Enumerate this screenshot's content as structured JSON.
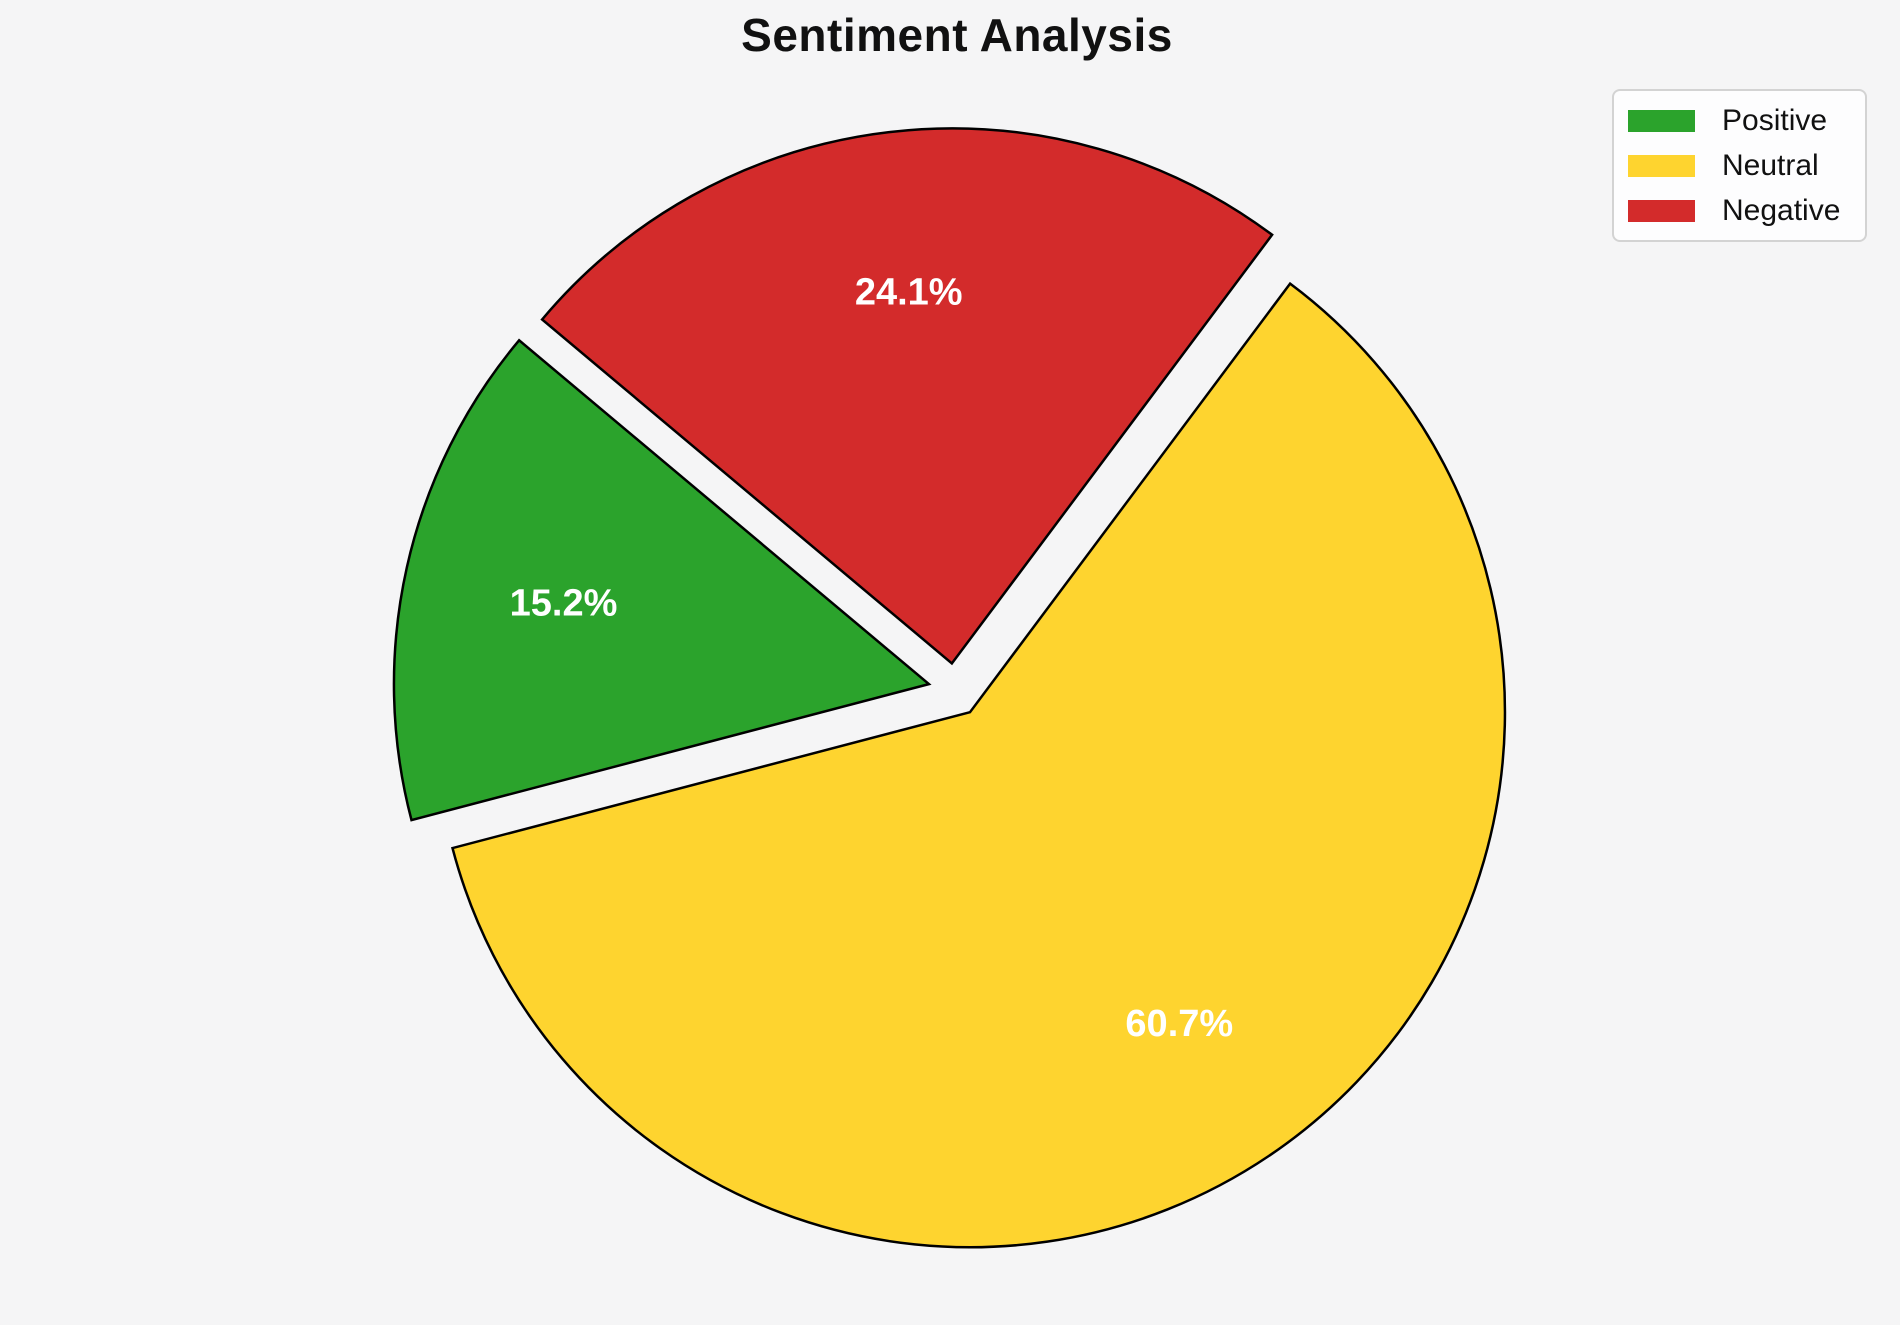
{
  "title": "Sentiment Analysis",
  "chart_data": {
    "type": "pie",
    "title": "Sentiment Analysis",
    "labels": [
      "Positive",
      "Neutral",
      "Negative"
    ],
    "values": [
      15.2,
      60.7,
      24.1
    ],
    "pct_labels": [
      "15.2%",
      "60.7%",
      "24.1%"
    ],
    "colors": [
      "#2ba32c",
      "#fed42f",
      "#d32b2b"
    ],
    "edge_color": "#000000",
    "label_color": "#ffffff",
    "background_color": "#f5f5f6",
    "startangle": 140,
    "counterclock": true,
    "explode": 0.05,
    "pctdistance": 0.7,
    "legend_position": "upper right",
    "legend_entries": [
      "Positive",
      "Neutral",
      "Negative"
    ]
  }
}
